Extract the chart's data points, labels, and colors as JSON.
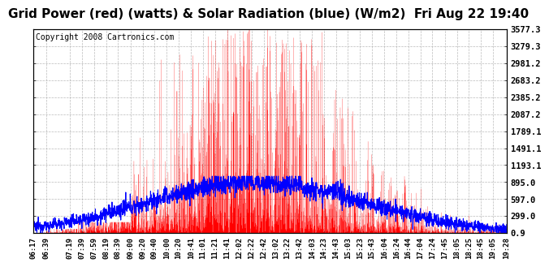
{
  "title": "Grid Power (red) (watts) & Solar Radiation (blue) (W/m2)  Fri Aug 22 19:40",
  "copyright": "Copyright 2008 Cartronics.com",
  "ylabel_right": [
    "0.9",
    "299.0",
    "597.0",
    "895.0",
    "1193.1",
    "1491.1",
    "1789.1",
    "2087.2",
    "2385.2",
    "2683.2",
    "2981.2",
    "3279.3",
    "3577.3"
  ],
  "yticks": [
    0.9,
    299.0,
    597.0,
    895.0,
    1193.1,
    1491.1,
    1789.1,
    2087.2,
    2385.2,
    2683.2,
    2981.2,
    3279.3,
    3577.3
  ],
  "ylim": [
    0.9,
    3577.3
  ],
  "x_labels": [
    "06:17",
    "06:39",
    "07:19",
    "07:39",
    "07:59",
    "08:19",
    "08:39",
    "09:00",
    "09:20",
    "09:40",
    "10:00",
    "10:20",
    "10:41",
    "11:01",
    "11:21",
    "11:41",
    "12:02",
    "12:22",
    "12:42",
    "13:02",
    "13:22",
    "13:42",
    "14:03",
    "14:23",
    "14:43",
    "15:03",
    "15:23",
    "15:43",
    "16:04",
    "16:24",
    "16:44",
    "17:04",
    "17:24",
    "17:45",
    "18:05",
    "18:25",
    "18:45",
    "19:05",
    "19:28"
  ],
  "background_color": "#ffffff",
  "grid_color": "#aaaaaa",
  "red_color": "#ff0000",
  "blue_color": "#0000ff",
  "title_fontsize": 11,
  "copyright_fontsize": 7
}
